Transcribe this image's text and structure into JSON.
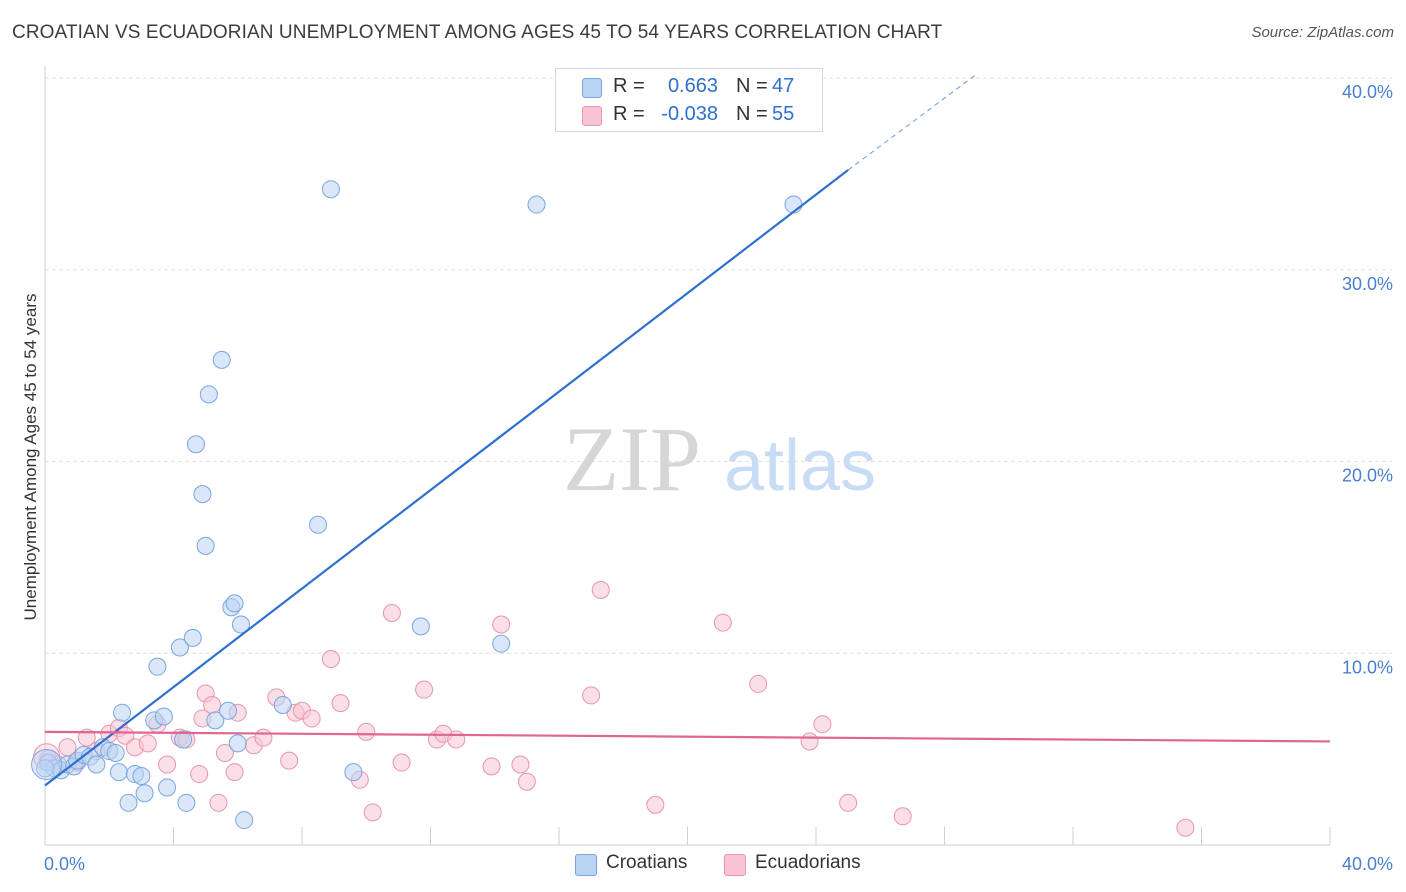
{
  "title": "CROATIAN VS ECUADORIAN UNEMPLOYMENT AMONG AGES 45 TO 54 YEARS CORRELATION CHART",
  "source": "Source: ZipAtlas.com",
  "watermark": {
    "zip": "ZIP",
    "atlas": "atlas"
  },
  "colors": {
    "croatians_fill": "#b9d3f3",
    "croatians_stroke": "#7aa6e0",
    "croatians_line": "#2e6fd0",
    "ecuadorians_fill": "#f8c4d4",
    "ecuadorians_stroke": "#e995b0",
    "ecuadorians_line": "#e0658f",
    "tick_label": "#4a7fcf",
    "grid": "#e3e3e3"
  },
  "legend": {
    "rows": [
      {
        "r_label": "R =",
        "r_value": "0.663",
        "n_label": "N =",
        "n_value": "47"
      },
      {
        "r_label": "R =",
        "r_value": "-0.038",
        "n_label": "N =",
        "n_value": "55"
      }
    ]
  },
  "bottom_legend": {
    "croatians": "Croatians",
    "ecuadorians": "Ecuadorians"
  },
  "chart_data": {
    "type": "scatter",
    "title": "CROATIAN VS ECUADORIAN UNEMPLOYMENT AMONG AGES 45 TO 54 YEARS CORRELATION CHART",
    "xlabel": "",
    "ylabel": "Unemployment Among Ages 45 to 54 years",
    "xlim": [
      0,
      40
    ],
    "ylim": [
      0,
      40
    ],
    "x_tick_labels": [
      "0.0%",
      "40.0%"
    ],
    "y_ticks": [
      10,
      20,
      30,
      40
    ],
    "y_tick_labels": [
      "10.0%",
      "20.0%",
      "30.0%",
      "40.0%"
    ],
    "grid": true,
    "series": [
      {
        "name": "Croatians",
        "r": 0.663,
        "n": 47,
        "trend": {
          "x0": 0,
          "y0": 3.1,
          "x1": 25,
          "y1": 35.2,
          "dashed_to_x": 29,
          "dashed_to_y": 40.2
        },
        "points": [
          [
            0.1,
            4.3
          ],
          [
            0.3,
            4.0
          ],
          [
            0.5,
            3.9
          ],
          [
            0.7,
            4.2
          ],
          [
            0.9,
            4.1
          ],
          [
            1.0,
            4.4
          ],
          [
            1.2,
            4.7
          ],
          [
            1.4,
            4.6
          ],
          [
            1.6,
            4.2
          ],
          [
            1.8,
            5.1
          ],
          [
            2.0,
            4.9
          ],
          [
            2.2,
            4.8
          ],
          [
            2.3,
            3.8
          ],
          [
            2.4,
            6.9
          ],
          [
            2.6,
            2.2
          ],
          [
            2.8,
            3.7
          ],
          [
            3.0,
            3.6
          ],
          [
            3.1,
            2.7
          ],
          [
            3.4,
            6.5
          ],
          [
            3.5,
            9.3
          ],
          [
            3.7,
            6.7
          ],
          [
            3.8,
            3.0
          ],
          [
            4.2,
            10.3
          ],
          [
            4.3,
            5.5
          ],
          [
            4.4,
            2.2
          ],
          [
            4.6,
            10.8
          ],
          [
            4.7,
            20.9
          ],
          [
            4.9,
            18.3
          ],
          [
            5.0,
            15.6
          ],
          [
            5.1,
            23.5
          ],
          [
            5.3,
            6.5
          ],
          [
            5.5,
            25.3
          ],
          [
            5.7,
            7.0
          ],
          [
            5.8,
            12.4
          ],
          [
            5.9,
            12.6
          ],
          [
            6.0,
            5.3
          ],
          [
            6.1,
            11.5
          ],
          [
            6.2,
            1.3
          ],
          [
            7.4,
            7.3
          ],
          [
            8.5,
            16.7
          ],
          [
            8.9,
            34.2
          ],
          [
            9.6,
            3.8
          ],
          [
            11.7,
            11.4
          ],
          [
            14.2,
            10.5
          ],
          [
            15.3,
            33.4
          ],
          [
            23.3,
            33.4
          ],
          [
            0.0,
            4.0
          ]
        ]
      },
      {
        "name": "Ecuadorians",
        "r": -0.038,
        "n": 55,
        "trend": {
          "x0": 0,
          "y0": 5.9,
          "x1": 40,
          "y1": 5.4
        },
        "points": [
          [
            0.1,
            4.5
          ],
          [
            0.4,
            4.2
          ],
          [
            0.7,
            5.1
          ],
          [
            1.0,
            4.3
          ],
          [
            1.3,
            5.6
          ],
          [
            1.6,
            4.9
          ],
          [
            2.0,
            5.8
          ],
          [
            2.3,
            6.1
          ],
          [
            2.5,
            5.7
          ],
          [
            2.8,
            5.1
          ],
          [
            3.2,
            5.3
          ],
          [
            3.5,
            6.3
          ],
          [
            3.8,
            4.2
          ],
          [
            4.2,
            5.6
          ],
          [
            4.4,
            5.5
          ],
          [
            4.8,
            3.7
          ],
          [
            4.9,
            6.6
          ],
          [
            5.0,
            7.9
          ],
          [
            5.2,
            7.3
          ],
          [
            5.4,
            2.2
          ],
          [
            5.6,
            4.8
          ],
          [
            5.9,
            3.8
          ],
          [
            6.0,
            6.9
          ],
          [
            6.5,
            5.2
          ],
          [
            6.8,
            5.6
          ],
          [
            7.2,
            7.7
          ],
          [
            7.6,
            4.4
          ],
          [
            7.8,
            6.9
          ],
          [
            8.0,
            7.0
          ],
          [
            8.3,
            6.6
          ],
          [
            8.9,
            9.7
          ],
          [
            9.2,
            7.4
          ],
          [
            9.8,
            3.4
          ],
          [
            10.0,
            5.9
          ],
          [
            10.2,
            1.7
          ],
          [
            10.8,
            12.1
          ],
          [
            11.1,
            4.3
          ],
          [
            11.8,
            8.1
          ],
          [
            12.2,
            5.5
          ],
          [
            12.4,
            5.8
          ],
          [
            12.8,
            5.5
          ],
          [
            13.9,
            4.1
          ],
          [
            14.2,
            11.5
          ],
          [
            14.8,
            4.2
          ],
          [
            15.0,
            3.3
          ],
          [
            17.0,
            7.8
          ],
          [
            17.3,
            13.3
          ],
          [
            19.0,
            2.1
          ],
          [
            21.1,
            11.6
          ],
          [
            22.2,
            8.4
          ],
          [
            23.8,
            5.4
          ],
          [
            24.2,
            6.3
          ],
          [
            25.0,
            2.2
          ],
          [
            26.7,
            1.5
          ],
          [
            35.5,
            0.9
          ]
        ]
      }
    ]
  }
}
